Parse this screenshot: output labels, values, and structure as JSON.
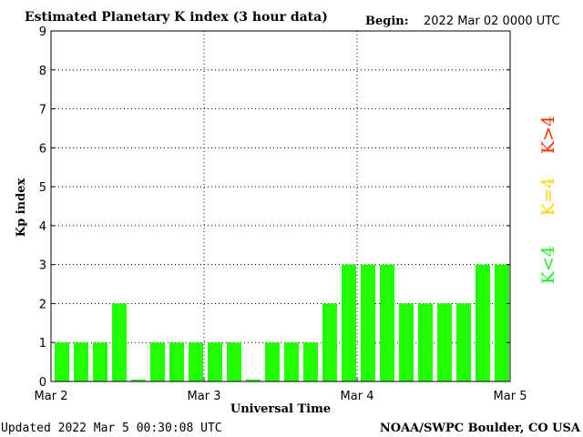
{
  "header": {
    "title": "Estimated Planetary K index (3 hour data)",
    "begin_label": "Begin:",
    "begin_value": "2022 Mar 02 0000 UTC"
  },
  "footer": {
    "updated": "Updated 2022 Mar  5 00:30:08 UTC",
    "source": "NOAA/SWPC Boulder, CO USA"
  },
  "legend": {
    "high": "K>4",
    "equal": "K=4",
    "low": "K<4",
    "high_color": "#ff2a00",
    "equal_color": "#ffd400",
    "low_color": "#22ee22"
  },
  "chart_data": {
    "type": "bar",
    "title": "Estimated Planetary K index (3 hour data)",
    "xlabel": "Universal Time",
    "ylabel": "Kp index",
    "ylim": [
      0,
      9
    ],
    "yticks": [
      "0",
      "1",
      "2",
      "3",
      "4",
      "5",
      "6",
      "7",
      "8",
      "9"
    ],
    "xticks": [
      "Mar 2",
      "Mar 3",
      "Mar 4",
      "Mar 5"
    ],
    "grid": true,
    "bar_color": "#22ff00",
    "values": [
      1,
      1,
      1,
      2,
      0.05,
      1,
      1,
      1,
      1,
      1,
      0.05,
      1,
      1,
      1,
      2,
      3,
      3,
      3,
      2,
      2,
      2,
      2,
      3,
      3
    ]
  }
}
